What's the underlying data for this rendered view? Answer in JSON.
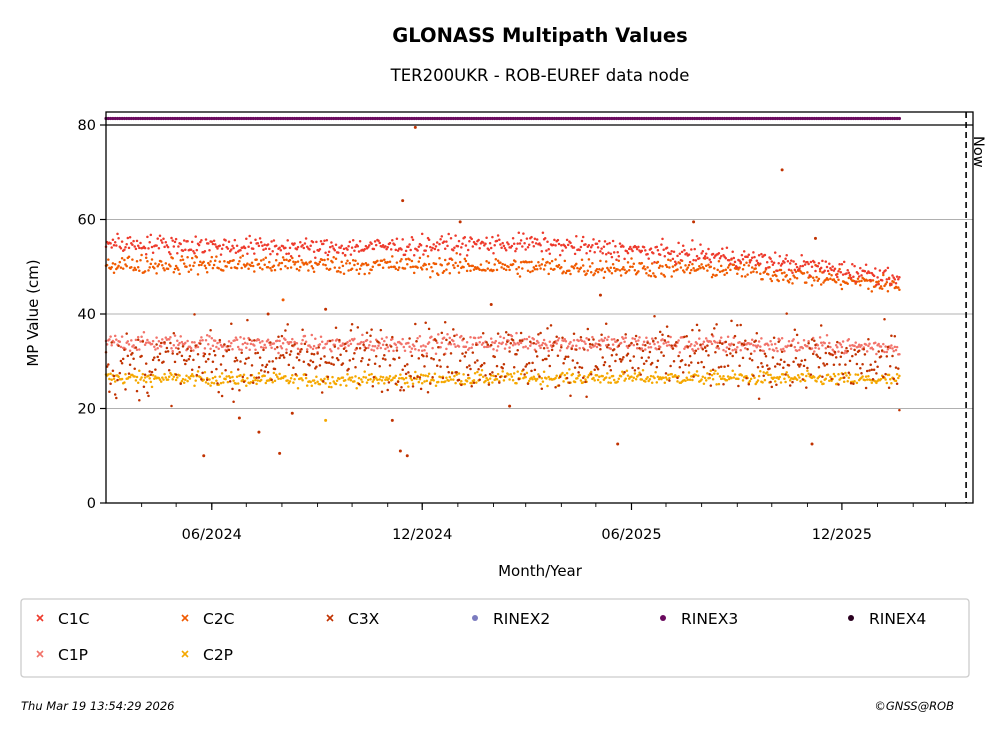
{
  "chart_data": {
    "type": "scatter",
    "title": "GLONASS Multipath Values",
    "subtitle": "TER200UKR - ROB-EUREF data node",
    "xlabel": "Month/Year",
    "ylabel": "MP Value (cm)",
    "xlim": [
      "2024-03-01",
      "2026-03-25"
    ],
    "ylim": [
      0,
      80
    ],
    "x_ticks": [
      {
        "date": "2024-06-01",
        "label": "06/2024"
      },
      {
        "date": "2024-12-01",
        "label": "12/2024"
      },
      {
        "date": "2025-06-01",
        "label": "06/2025"
      },
      {
        "date": "2025-12-01",
        "label": "12/2025"
      }
    ],
    "y_ticks": [
      0,
      20,
      40,
      60,
      80
    ],
    "grid": "horizontal",
    "now_marker": {
      "date": "2026-03-19",
      "label": "Now"
    },
    "data_start": "2024-03-01",
    "data_end": "2026-01-20",
    "rinex_strip": {
      "series": "RINEX3",
      "color": "#6a0a5e"
    },
    "series": [
      {
        "name": "C1C",
        "color": "#ee3a2c",
        "marker": "x",
        "trend": [
          [
            "2024-03-01",
            55
          ],
          [
            "2024-09-01",
            54
          ],
          [
            "2025-03-01",
            55
          ],
          [
            "2025-09-01",
            52
          ],
          [
            "2026-01-15",
            48
          ]
        ],
        "noise": 1.0
      },
      {
        "name": "C2C",
        "color": "#f05a00",
        "marker": "x",
        "trend": [
          [
            "2024-03-01",
            50.5
          ],
          [
            "2024-09-01",
            50.5
          ],
          [
            "2025-03-01",
            50
          ],
          [
            "2025-09-01",
            49.5
          ],
          [
            "2026-01-15",
            46
          ]
        ],
        "noise": 1.0
      },
      {
        "name": "C3X",
        "color": "#c13200",
        "marker": "x",
        "trend": [
          [
            "2024-03-01",
            29
          ],
          [
            "2024-09-01",
            31
          ],
          [
            "2025-03-01",
            31
          ],
          [
            "2025-09-01",
            31
          ],
          [
            "2026-01-15",
            29
          ]
        ],
        "noise": 3.5
      },
      {
        "name": "RINEX2",
        "color": "#7b7bbf",
        "marker": "dot",
        "trend": [],
        "noise": 0
      },
      {
        "name": "RINEX3",
        "color": "#6a0a5e",
        "marker": "dot",
        "trend": [],
        "noise": 0
      },
      {
        "name": "RINEX4",
        "color": "#2a0020",
        "marker": "dot",
        "trend": [],
        "noise": 0
      },
      {
        "name": "C1P",
        "color": "#f2736a",
        "marker": "x",
        "trend": [
          [
            "2024-03-01",
            34
          ],
          [
            "2024-09-01",
            33.5
          ],
          [
            "2025-03-01",
            34
          ],
          [
            "2025-09-01",
            33.5
          ],
          [
            "2026-01-15",
            33
          ]
        ],
        "noise": 0.9
      },
      {
        "name": "C2P",
        "color": "#f5a800",
        "marker": "x",
        "trend": [
          [
            "2024-03-01",
            26.5
          ],
          [
            "2024-09-01",
            26
          ],
          [
            "2025-03-01",
            26.5
          ],
          [
            "2025-09-01",
            26.5
          ],
          [
            "2026-01-15",
            26
          ]
        ],
        "noise": 0.7
      }
    ],
    "outliers": [
      {
        "series": "C3X",
        "x": "2024-05-25",
        "y": 10
      },
      {
        "series": "C3X",
        "x": "2024-06-25",
        "y": 18
      },
      {
        "series": "C3X",
        "x": "2024-07-12",
        "y": 15
      },
      {
        "series": "C3X",
        "x": "2024-07-20",
        "y": 40
      },
      {
        "series": "C3X",
        "x": "2024-07-30",
        "y": 10.5
      },
      {
        "series": "C2C",
        "x": "2024-08-02",
        "y": 43
      },
      {
        "series": "C3X",
        "x": "2024-08-10",
        "y": 19
      },
      {
        "series": "C3X",
        "x": "2024-09-08",
        "y": 41
      },
      {
        "series": "C2P",
        "x": "2024-09-08",
        "y": 17.5
      },
      {
        "series": "C3X",
        "x": "2024-11-05",
        "y": 17.5
      },
      {
        "series": "C3X",
        "x": "2024-11-12",
        "y": 11
      },
      {
        "series": "C3X",
        "x": "2024-11-14",
        "y": 64
      },
      {
        "series": "C3X",
        "x": "2024-11-18",
        "y": 10
      },
      {
        "series": "C3X",
        "x": "2024-11-25",
        "y": 79.5
      },
      {
        "series": "C3X",
        "x": "2025-01-03",
        "y": 59.5
      },
      {
        "series": "C3X",
        "x": "2025-01-30",
        "y": 42
      },
      {
        "series": "C3X",
        "x": "2025-02-15",
        "y": 20.5
      },
      {
        "series": "C3X",
        "x": "2025-05-05",
        "y": 44
      },
      {
        "series": "C3X",
        "x": "2025-05-20",
        "y": 12.5
      },
      {
        "series": "C3X",
        "x": "2025-07-25",
        "y": 59.5
      },
      {
        "series": "C3X",
        "x": "2025-10-10",
        "y": 70.5
      },
      {
        "series": "C3X",
        "x": "2025-11-05",
        "y": 12.5
      },
      {
        "series": "C3X",
        "x": "2025-11-08",
        "y": 56
      }
    ]
  },
  "footer": {
    "timestamp": "Thu Mar 19 13:54:29 2026",
    "credit": "©GNSS@ROB"
  }
}
